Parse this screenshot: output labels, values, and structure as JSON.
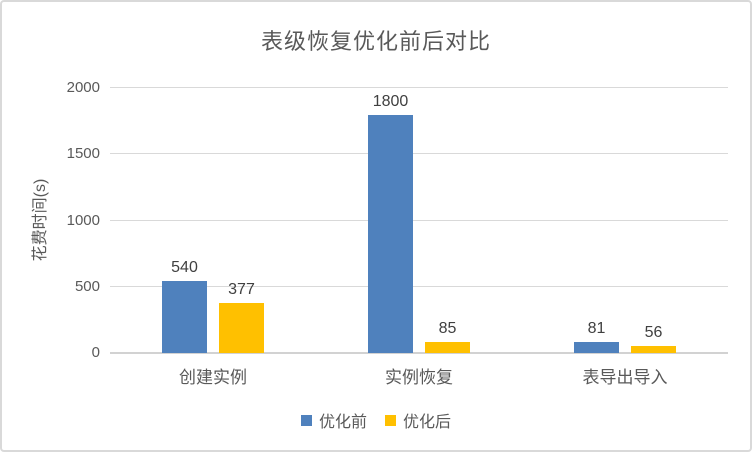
{
  "chart_data": {
    "type": "bar",
    "title": "表级恢复优化前后对比",
    "ylabel": "花费时间(s)",
    "xlabel": "",
    "categories": [
      "创建实例",
      "实例恢复",
      "表导出导入"
    ],
    "series": [
      {
        "name": "优化前",
        "color": "#4F81BD",
        "values": [
          540,
          1800,
          81
        ]
      },
      {
        "name": "优化后",
        "color": "#FFC000",
        "values": [
          377,
          85,
          56
        ]
      }
    ],
    "ylim": [
      0,
      2000
    ],
    "yticks": [
      0,
      500,
      1000,
      1500,
      2000
    ],
    "grid": true,
    "legend_position": "bottom",
    "data_labels": true
  },
  "colors": {
    "series_before": "#4F81BD",
    "series_after": "#FFC000",
    "title_text": "#595959",
    "axis_text": "#595959",
    "category_text": "#595959",
    "data_label_text": "#404040",
    "gridline": "#D9D9D9",
    "axis_baseline": "#D2D2D2",
    "frame_border": "#D9D9D9",
    "background": "#FFFFFF"
  }
}
